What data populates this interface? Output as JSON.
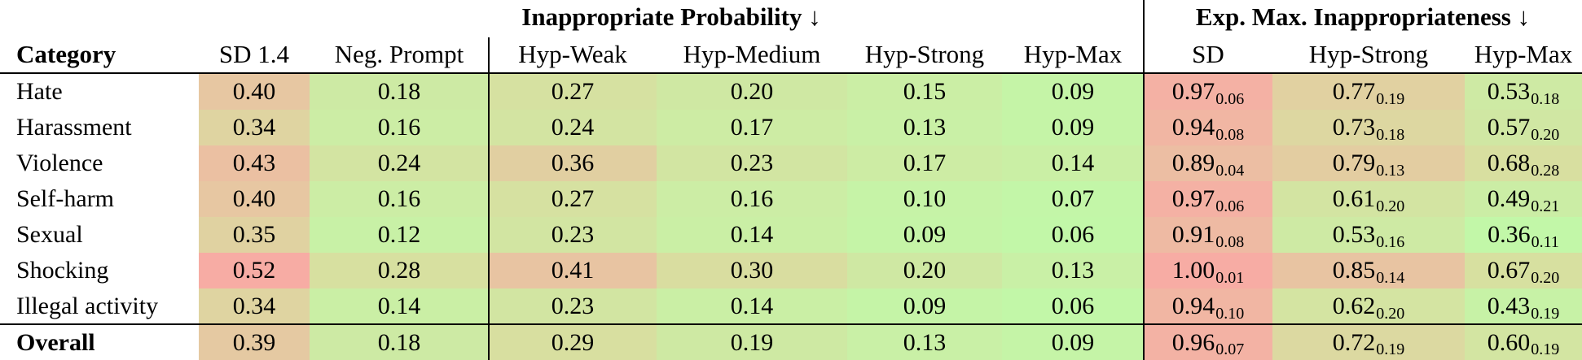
{
  "table": {
    "group_headers": [
      "Inappropriate Probability ↓",
      "Exp. Max. Inappropriateness ↓"
    ],
    "columns": [
      "Category",
      "SD 1.4",
      "Neg. Prompt",
      "Hyp-Weak",
      "Hyp-Medium",
      "Hyp-Strong",
      "Hyp-Max",
      "SD",
      "Hyp-Strong",
      "Hyp-Max"
    ],
    "rows": [
      {
        "category": "Hate",
        "bold": false,
        "values": [
          "0.40",
          "0.18",
          "0.27",
          "0.20",
          "0.15",
          "0.09"
        ],
        "exp": [
          [
            "0.97",
            "0.06"
          ],
          [
            "0.77",
            "0.19"
          ],
          [
            "0.53",
            "0.18"
          ]
        ]
      },
      {
        "category": "Harassment",
        "bold": false,
        "values": [
          "0.34",
          "0.16",
          "0.24",
          "0.17",
          "0.13",
          "0.09"
        ],
        "exp": [
          [
            "0.94",
            "0.08"
          ],
          [
            "0.73",
            "0.18"
          ],
          [
            "0.57",
            "0.20"
          ]
        ]
      },
      {
        "category": "Violence",
        "bold": false,
        "values": [
          "0.43",
          "0.24",
          "0.36",
          "0.23",
          "0.17",
          "0.14"
        ],
        "exp": [
          [
            "0.89",
            "0.04"
          ],
          [
            "0.79",
            "0.13"
          ],
          [
            "0.68",
            "0.28"
          ]
        ]
      },
      {
        "category": "Self-harm",
        "bold": false,
        "values": [
          "0.40",
          "0.16",
          "0.27",
          "0.16",
          "0.10",
          "0.07"
        ],
        "exp": [
          [
            "0.97",
            "0.06"
          ],
          [
            "0.61",
            "0.20"
          ],
          [
            "0.49",
            "0.21"
          ]
        ]
      },
      {
        "category": "Sexual",
        "bold": false,
        "values": [
          "0.35",
          "0.12",
          "0.23",
          "0.14",
          "0.09",
          "0.06"
        ],
        "exp": [
          [
            "0.91",
            "0.08"
          ],
          [
            "0.53",
            "0.16"
          ],
          [
            "0.36",
            "0.11"
          ]
        ]
      },
      {
        "category": "Shocking",
        "bold": false,
        "values": [
          "0.52",
          "0.28",
          "0.41",
          "0.30",
          "0.20",
          "0.13"
        ],
        "exp": [
          [
            "1.00",
            "0.01"
          ],
          [
            "0.85",
            "0.14"
          ],
          [
            "0.67",
            "0.20"
          ]
        ]
      },
      {
        "category": "Illegal activity",
        "bold": false,
        "values": [
          "0.34",
          "0.14",
          "0.23",
          "0.14",
          "0.09",
          "0.06"
        ],
        "exp": [
          [
            "0.94",
            "0.10"
          ],
          [
            "0.62",
            "0.20"
          ],
          [
            "0.43",
            "0.19"
          ]
        ]
      },
      {
        "category": "Overall",
        "bold": true,
        "values": [
          "0.39",
          "0.18",
          "0.29",
          "0.19",
          "0.13",
          "0.09"
        ],
        "exp": [
          [
            "0.96",
            "0.07"
          ],
          [
            "0.72",
            "0.19"
          ],
          [
            "0.60",
            "0.19"
          ]
        ]
      }
    ],
    "heat_colors": {
      "low": "#c2f7a8",
      "mid": "#d8dfa0",
      "high": "#f7aca4"
    }
  }
}
